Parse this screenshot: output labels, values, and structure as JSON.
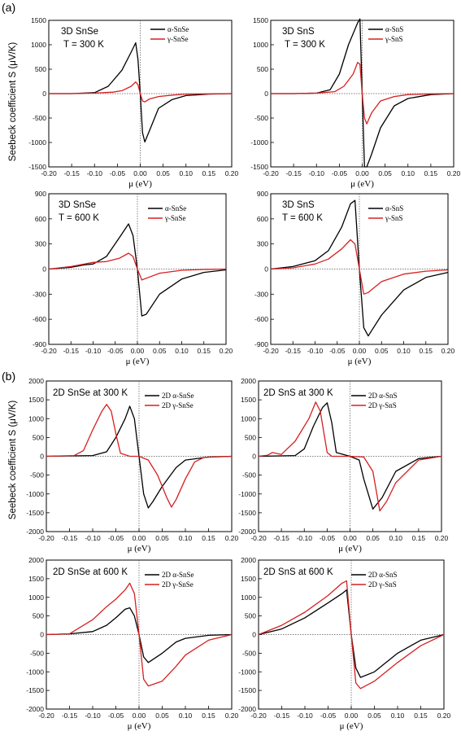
{
  "figure": {
    "panel_labels": [
      "(a)",
      "(b)"
    ],
    "ylabel_a": "Seebeck coefficient S (μV/K)",
    "ylabel_b": "Seebeck coefficient S (μV/K)",
    "colors": {
      "alpha": "#000000",
      "gamma": "#d62020"
    }
  },
  "chart_data": [
    {
      "type": "line",
      "title": "3D SnSe",
      "subtitle": "T = 300 K",
      "xlabel": "μ (eV)",
      "xlim": [
        -0.2,
        0.2
      ],
      "ylim": [
        -1500,
        1500
      ],
      "xticks": [
        "-0.20",
        "-0.15",
        "-0.10",
        "-0.05",
        "0.00",
        "0.05",
        "0.10",
        "0.15",
        "0.20"
      ],
      "yticks": [
        "-1500",
        "-1000",
        "-500",
        "0",
        "500",
        "1000",
        "1500"
      ],
      "series": [
        {
          "name": "α-SnSe",
          "color": "#000000",
          "x": [
            -0.2,
            -0.15,
            -0.1,
            -0.07,
            -0.04,
            -0.02,
            -0.01,
            -0.005,
            0.0,
            0.005,
            0.01,
            0.02,
            0.04,
            0.07,
            0.1,
            0.15,
            0.2
          ],
          "y": [
            0,
            0,
            20,
            150,
            480,
            850,
            1040,
            700,
            0,
            -800,
            -990,
            -760,
            -300,
            -120,
            -40,
            -10,
            0
          ]
        },
        {
          "name": "γ-SnSe",
          "color": "#d62020",
          "x": [
            -0.2,
            -0.15,
            -0.1,
            -0.06,
            -0.04,
            -0.02,
            -0.01,
            -0.005,
            0.0,
            0.005,
            0.01,
            0.02,
            0.04,
            0.07,
            0.1,
            0.15,
            0.2
          ],
          "y": [
            0,
            0,
            10,
            30,
            60,
            150,
            240,
            180,
            0,
            -150,
            -170,
            -110,
            -60,
            -30,
            -10,
            -5,
            0
          ]
        }
      ]
    },
    {
      "type": "line",
      "title": "3D SnS",
      "subtitle": "T = 300 K",
      "xlabel": "μ (eV)",
      "xlim": [
        -0.2,
        0.2
      ],
      "ylim": [
        -1500,
        1500
      ],
      "xticks": [
        "-0.20",
        "-0.15",
        "-0.10",
        "-0.05",
        "0.00",
        "0.05",
        "0.10",
        "0.15",
        "0.20"
      ],
      "yticks": [
        "-1500",
        "-1000",
        "-500",
        "0",
        "500",
        "1000",
        "1500"
      ],
      "series": [
        {
          "name": "α-SnS",
          "color": "#000000",
          "x": [
            -0.2,
            -0.15,
            -0.1,
            -0.07,
            -0.05,
            -0.03,
            -0.01,
            -0.005,
            0.0,
            0.005,
            0.01,
            0.02,
            0.04,
            0.07,
            0.1,
            0.15,
            0.2
          ],
          "y": [
            0,
            0,
            10,
            80,
            400,
            1000,
            1450,
            1530,
            0,
            -1500,
            -1500,
            -1250,
            -700,
            -250,
            -100,
            -20,
            0
          ]
        },
        {
          "name": "γ-SnS",
          "color": "#d62020",
          "x": [
            -0.2,
            -0.15,
            -0.1,
            -0.06,
            -0.04,
            -0.02,
            -0.01,
            -0.005,
            0.0,
            0.005,
            0.01,
            0.02,
            0.04,
            0.07,
            0.1,
            0.15,
            0.2
          ],
          "y": [
            0,
            0,
            10,
            40,
            150,
            400,
            640,
            600,
            0,
            -500,
            -620,
            -400,
            -150,
            -60,
            -20,
            -5,
            0
          ]
        }
      ]
    },
    {
      "type": "line",
      "title": "3D SnSe",
      "subtitle": "T = 600 K",
      "xlabel": "μ (eV)",
      "xlim": [
        -0.2,
        0.2
      ],
      "ylim": [
        -900,
        900
      ],
      "xticks": [
        "-0.20",
        "-0.15",
        "-0.10",
        "-0.05",
        "0.00",
        "0.05",
        "0.10",
        "0.15",
        "0.20"
      ],
      "yticks": [
        "-900",
        "-600",
        "-300",
        "0",
        "300",
        "600",
        "900"
      ],
      "series": [
        {
          "name": "α-SnSe",
          "color": "#000000",
          "x": [
            -0.2,
            -0.15,
            -0.12,
            -0.1,
            -0.07,
            -0.04,
            -0.02,
            -0.01,
            0.0,
            0.01,
            0.02,
            0.05,
            0.1,
            0.15,
            0.2
          ],
          "y": [
            0,
            20,
            50,
            60,
            150,
            380,
            540,
            400,
            0,
            -560,
            -540,
            -300,
            -120,
            -40,
            -10
          ]
        },
        {
          "name": "γ-SnSe",
          "color": "#d62020",
          "x": [
            -0.2,
            -0.15,
            -0.1,
            -0.07,
            -0.04,
            -0.02,
            -0.01,
            0.0,
            0.01,
            0.02,
            0.05,
            0.1,
            0.15,
            0.2
          ],
          "y": [
            0,
            30,
            80,
            90,
            130,
            190,
            150,
            0,
            -130,
            -110,
            -50,
            -15,
            -5,
            0
          ]
        }
      ]
    },
    {
      "type": "line",
      "title": "3D SnS",
      "subtitle": "T = 600 K",
      "xlabel": "μ (eV)",
      "xlim": [
        -0.2,
        0.2
      ],
      "ylim": [
        -900,
        900
      ],
      "xticks": [
        "-0.20",
        "-0.15",
        "-0.10",
        "-0.05",
        "0.00",
        "0.05",
        "0.10",
        "0.15",
        "0.20"
      ],
      "yticks": [
        "-900",
        "-600",
        "-300",
        "0",
        "300",
        "600",
        "900"
      ],
      "series": [
        {
          "name": "α-SnS",
          "color": "#000000",
          "x": [
            -0.2,
            -0.15,
            -0.1,
            -0.07,
            -0.04,
            -0.02,
            -0.01,
            0.0,
            0.01,
            0.02,
            0.05,
            0.1,
            0.15,
            0.2
          ],
          "y": [
            0,
            30,
            100,
            220,
            500,
            780,
            820,
            0,
            -700,
            -800,
            -550,
            -250,
            -100,
            -40
          ]
        },
        {
          "name": "γ-SnS",
          "color": "#d62020",
          "x": [
            -0.2,
            -0.15,
            -0.1,
            -0.07,
            -0.04,
            -0.02,
            -0.01,
            0.0,
            0.01,
            0.02,
            0.05,
            0.1,
            0.15,
            0.2
          ],
          "y": [
            0,
            15,
            60,
            120,
            240,
            350,
            300,
            0,
            -300,
            -280,
            -150,
            -60,
            -25,
            -10
          ]
        }
      ]
    },
    {
      "type": "line",
      "title": "2D SnSe at 300 K",
      "xlabel": "μ (eV)",
      "xlim": [
        -0.2,
        0.2
      ],
      "ylim": [
        -2000,
        2000
      ],
      "xticks": [
        "-0.20",
        "-0.15",
        "-0.10",
        "-0.05",
        "0.00",
        "0.05",
        "0.10",
        "0.15",
        "0.20"
      ],
      "yticks": [
        "-2000",
        "-1500",
        "-1000",
        "-500",
        "0",
        "500",
        "1000",
        "1500",
        "2000"
      ],
      "series": [
        {
          "name": "2D α-SnSe",
          "color": "#000000",
          "x": [
            -0.2,
            -0.1,
            -0.07,
            -0.05,
            -0.03,
            -0.02,
            -0.01,
            0.0,
            0.01,
            0.02,
            0.03,
            0.05,
            0.08,
            0.1,
            0.15,
            0.2
          ],
          "y": [
            0,
            20,
            120,
            500,
            1000,
            1330,
            1000,
            0,
            -1000,
            -1370,
            -1200,
            -800,
            -300,
            -100,
            -20,
            0
          ]
        },
        {
          "name": "2D γ-SnSe",
          "color": "#d62020",
          "x": [
            -0.2,
            -0.14,
            -0.12,
            -0.1,
            -0.08,
            -0.07,
            -0.06,
            -0.05,
            -0.04,
            -0.02,
            0.0,
            0.02,
            0.04,
            0.06,
            0.07,
            0.08,
            0.1,
            0.12,
            0.14,
            0.2
          ],
          "y": [
            0,
            20,
            150,
            700,
            1200,
            1380,
            1200,
            600,
            80,
            0,
            0,
            -100,
            -500,
            -1100,
            -1350,
            -1150,
            -600,
            -150,
            -30,
            0
          ]
        }
      ]
    },
    {
      "type": "line",
      "title": "2D SnS at 300 K",
      "xlabel": "μ (eV)",
      "xlim": [
        -0.2,
        0.2
      ],
      "ylim": [
        -2000,
        2000
      ],
      "xticks": [
        "-0.20",
        "-0.15",
        "-0.10",
        "-0.05",
        "0.00",
        "0.05",
        "0.10",
        "0.15",
        "0.20"
      ],
      "yticks": [
        "-2000",
        "-1500",
        "-1000",
        "-500",
        "0",
        "500",
        "1000",
        "1500",
        "2000"
      ],
      "series": [
        {
          "name": "2D α-SnS",
          "color": "#000000",
          "x": [
            -0.2,
            -0.12,
            -0.1,
            -0.08,
            -0.06,
            -0.05,
            -0.04,
            -0.03,
            0.0,
            0.02,
            0.03,
            0.05,
            0.07,
            0.1,
            0.15,
            0.2
          ],
          "y": [
            0,
            20,
            200,
            800,
            1300,
            1420,
            900,
            100,
            0,
            -100,
            -600,
            -1400,
            -1100,
            -400,
            -60,
            0
          ]
        },
        {
          "name": "2D γ-SnS",
          "color": "#d62020",
          "x": [
            -0.2,
            -0.18,
            -0.17,
            -0.15,
            -0.12,
            -0.09,
            -0.075,
            -0.065,
            -0.05,
            -0.04,
            0.0,
            0.03,
            0.05,
            0.065,
            0.08,
            0.1,
            0.15,
            0.2
          ],
          "y": [
            0,
            30,
            100,
            50,
            400,
            1000,
            1440,
            1200,
            100,
            0,
            0,
            -20,
            -400,
            -1450,
            -1200,
            -700,
            -100,
            0
          ]
        }
      ]
    },
    {
      "type": "line",
      "title": "2D SnSe at 600 K",
      "xlabel": "μ (eV)",
      "xlim": [
        -0.2,
        0.2
      ],
      "ylim": [
        -2000,
        2000
      ],
      "xticks": [
        "-0.20",
        "-0.15",
        "-0.10",
        "-0.05",
        "0.00",
        "0.05",
        "0.10",
        "0.15",
        "0.20"
      ],
      "yticks": [
        "-2000",
        "-1500",
        "-1000",
        "-500",
        "0",
        "500",
        "1000",
        "1500",
        "2000"
      ],
      "series": [
        {
          "name": "2D α-SnSe",
          "color": "#000000",
          "x": [
            -0.2,
            -0.15,
            -0.1,
            -0.07,
            -0.05,
            -0.03,
            -0.02,
            -0.01,
            0.0,
            0.01,
            0.02,
            0.05,
            0.08,
            0.1,
            0.15,
            0.2
          ],
          "y": [
            0,
            20,
            80,
            250,
            450,
            680,
            720,
            500,
            0,
            -600,
            -750,
            -500,
            -200,
            -100,
            -20,
            0
          ]
        },
        {
          "name": "2D γ-SnSe",
          "color": "#d62020",
          "x": [
            -0.2,
            -0.15,
            -0.1,
            -0.07,
            -0.05,
            -0.03,
            -0.02,
            -0.01,
            0.0,
            0.01,
            0.02,
            0.05,
            0.08,
            0.1,
            0.15,
            0.2
          ],
          "y": [
            0,
            20,
            400,
            750,
            950,
            1200,
            1380,
            1100,
            0,
            -1200,
            -1380,
            -1250,
            -850,
            -550,
            -150,
            0
          ]
        }
      ]
    },
    {
      "type": "line",
      "title": "2D SnS at 600 K",
      "xlabel": "μ (eV)",
      "xlim": [
        -0.2,
        0.2
      ],
      "ylim": [
        -2000,
        2000
      ],
      "xticks": [
        "-0.20",
        "-0.15",
        "-0.10",
        "-0.05",
        "0.00",
        "0.05",
        "0.10",
        "0.15",
        "0.20"
      ],
      "yticks": [
        "-2000",
        "-1500",
        "-1000",
        "-500",
        "0",
        "500",
        "1000",
        "1500",
        "2000"
      ],
      "series": [
        {
          "name": "2D α-SnS",
          "color": "#000000",
          "x": [
            -0.2,
            -0.15,
            -0.1,
            -0.05,
            -0.02,
            -0.01,
            0.0,
            0.01,
            0.02,
            0.05,
            0.1,
            0.15,
            0.2
          ],
          "y": [
            0,
            150,
            450,
            850,
            1100,
            1200,
            0,
            -900,
            -1150,
            -1000,
            -500,
            -150,
            0
          ]
        },
        {
          "name": "2D γ-SnS",
          "color": "#d62020",
          "x": [
            -0.2,
            -0.15,
            -0.1,
            -0.05,
            -0.02,
            -0.01,
            0.0,
            0.01,
            0.02,
            0.05,
            0.1,
            0.15,
            0.2
          ],
          "y": [
            0,
            250,
            600,
            1050,
            1380,
            1440,
            0,
            -1300,
            -1450,
            -1250,
            -750,
            -300,
            0
          ]
        }
      ]
    }
  ]
}
